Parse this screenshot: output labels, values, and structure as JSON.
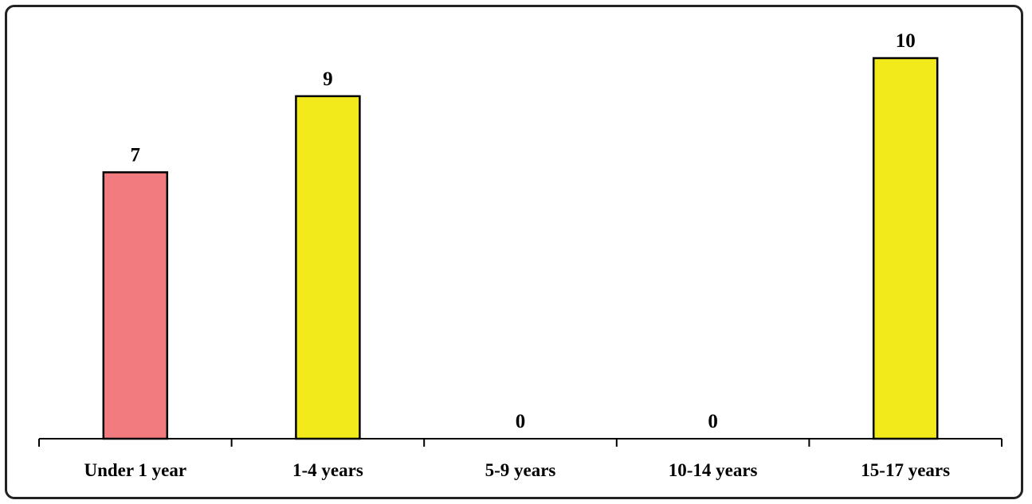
{
  "chart_data": {
    "type": "bar",
    "categories": [
      "Under 1 year",
      "1-4 years",
      "5-9 years",
      "10-14 years",
      "15-17 years"
    ],
    "values": [
      7,
      9,
      0,
      0,
      10
    ],
    "data_labels": [
      "7",
      "9",
      "0",
      "0",
      "10"
    ],
    "bar_colors": [
      "#f27b80",
      "#f2ea1b",
      "#f2ea1b",
      "#f2ea1b",
      "#f2ea1b"
    ],
    "bar_outline_color": "#000000",
    "title": "",
    "xlabel": "",
    "ylabel": "",
    "ylim": [
      0,
      10.5
    ],
    "grid": false,
    "legend": "none",
    "y_axis_visible": false
  }
}
